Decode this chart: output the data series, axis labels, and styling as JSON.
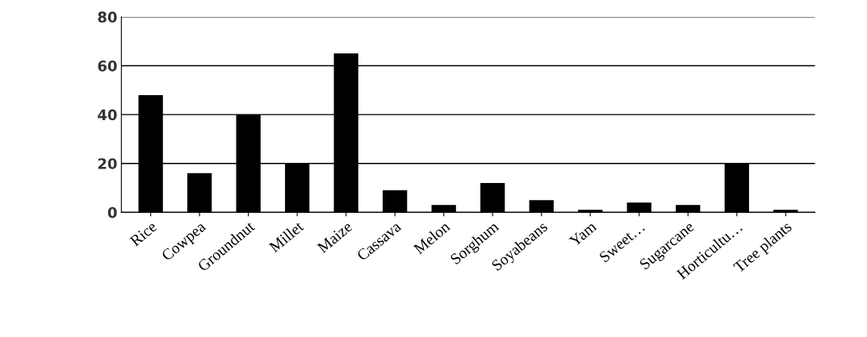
{
  "chart_data": {
    "type": "bar",
    "categories": [
      "Rice",
      "Cowpea",
      "Groundnut",
      "Millet",
      "Maize",
      "Cassava",
      "Melon",
      "Sorghum",
      "Soyabeans",
      "Yam",
      "Sweet…",
      "Sugarcane",
      "Horticultu…",
      "Tree plants"
    ],
    "values": [
      48,
      16,
      40,
      20,
      65,
      9,
      3,
      12,
      5,
      1,
      4,
      3,
      20,
      1
    ],
    "color": "#000000",
    "ylim": [
      0,
      80
    ],
    "yticks": [
      0,
      20,
      40,
      60,
      80
    ],
    "grid": "y"
  }
}
